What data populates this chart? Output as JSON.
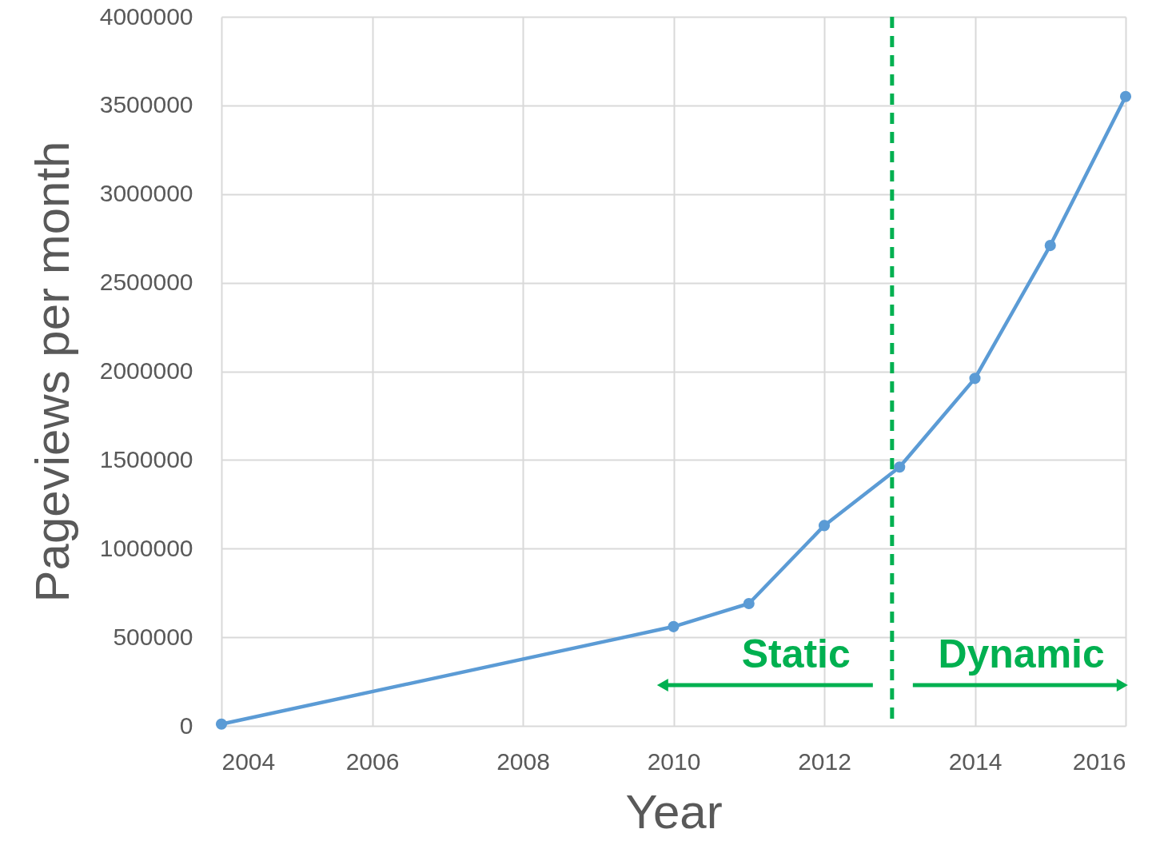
{
  "chart_data": {
    "type": "line",
    "xlabel": "Year",
    "ylabel": "Pageviews per month",
    "x": [
      2004,
      2010,
      2011,
      2012,
      2013,
      2014,
      2015,
      2016
    ],
    "series": [
      {
        "color": "#5b9bd5",
        "values": [
          10000,
          560000,
          690000,
          1130000,
          1460000,
          1960000,
          2710000,
          3550000
        ]
      }
    ],
    "xlim": [
      2004,
      2016
    ],
    "xticks": [
      2004,
      2006,
      2008,
      2010,
      2012,
      2014,
      2016
    ],
    "ylim": [
      0,
      4000000
    ],
    "yticks": [
      0,
      500000,
      1000000,
      1500000,
      2000000,
      2500000,
      3000000,
      3500000,
      4000000
    ],
    "grid": true,
    "marker": "circle",
    "line_style": "solid",
    "ref_lines": [
      {
        "axis": "x",
        "value": 2012.9,
        "color": "#00b050",
        "line_style": "dashed"
      }
    ],
    "annotations": [
      "Static",
      "Dynamic"
    ]
  }
}
